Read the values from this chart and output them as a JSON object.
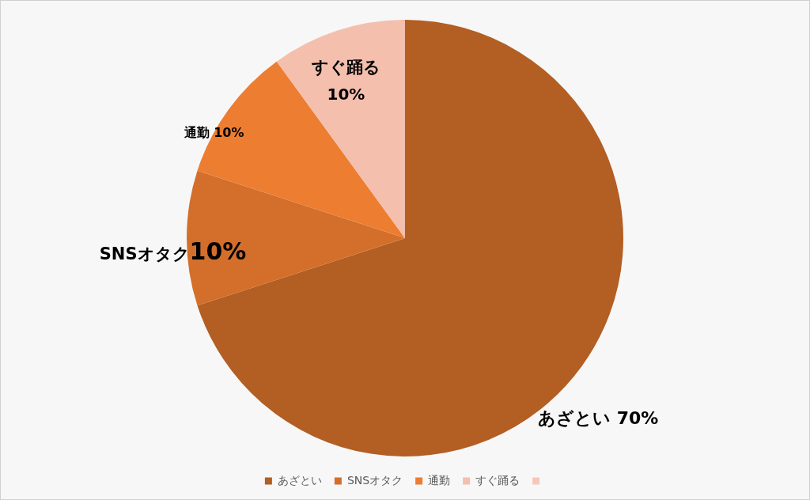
{
  "chart_data": {
    "type": "pie",
    "categories": [
      "あざとい",
      "SNSオタク",
      "通勤",
      "すぐ踊る",
      null
    ],
    "values": [
      70,
      10,
      10,
      10,
      0
    ],
    "colors": [
      "#b35e22",
      "#d36f2b",
      "#ed7d31",
      "#f4bfad",
      "#f6c8b9"
    ],
    "value_labels": [
      "70%",
      "10%",
      "10%",
      "10%",
      null
    ],
    "legend": "bottom"
  }
}
